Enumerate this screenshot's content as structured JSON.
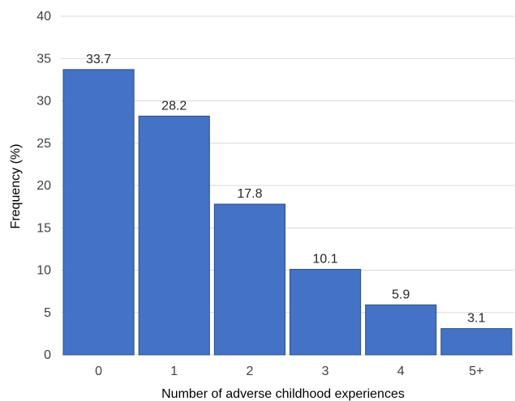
{
  "chart_data": {
    "type": "bar",
    "categories": [
      "0",
      "1",
      "2",
      "3",
      "4",
      "5+"
    ],
    "values": [
      33.7,
      28.2,
      17.8,
      10.1,
      5.9,
      3.1
    ],
    "data_labels": [
      "33.7",
      "28.2",
      "17.8",
      "10.1",
      "5.9",
      "3.1"
    ],
    "title": "",
    "xlabel": "Number of adverse childhood experiences",
    "ylabel": "Frequency (%)",
    "ylim": [
      0,
      40
    ],
    "yticks": [
      "0",
      "5",
      "10",
      "15",
      "20",
      "25",
      "30",
      "35",
      "40"
    ],
    "grid": true,
    "legend": "none",
    "bar_color": "#4472c4",
    "bar_edge_color": "#2f4f7f"
  }
}
